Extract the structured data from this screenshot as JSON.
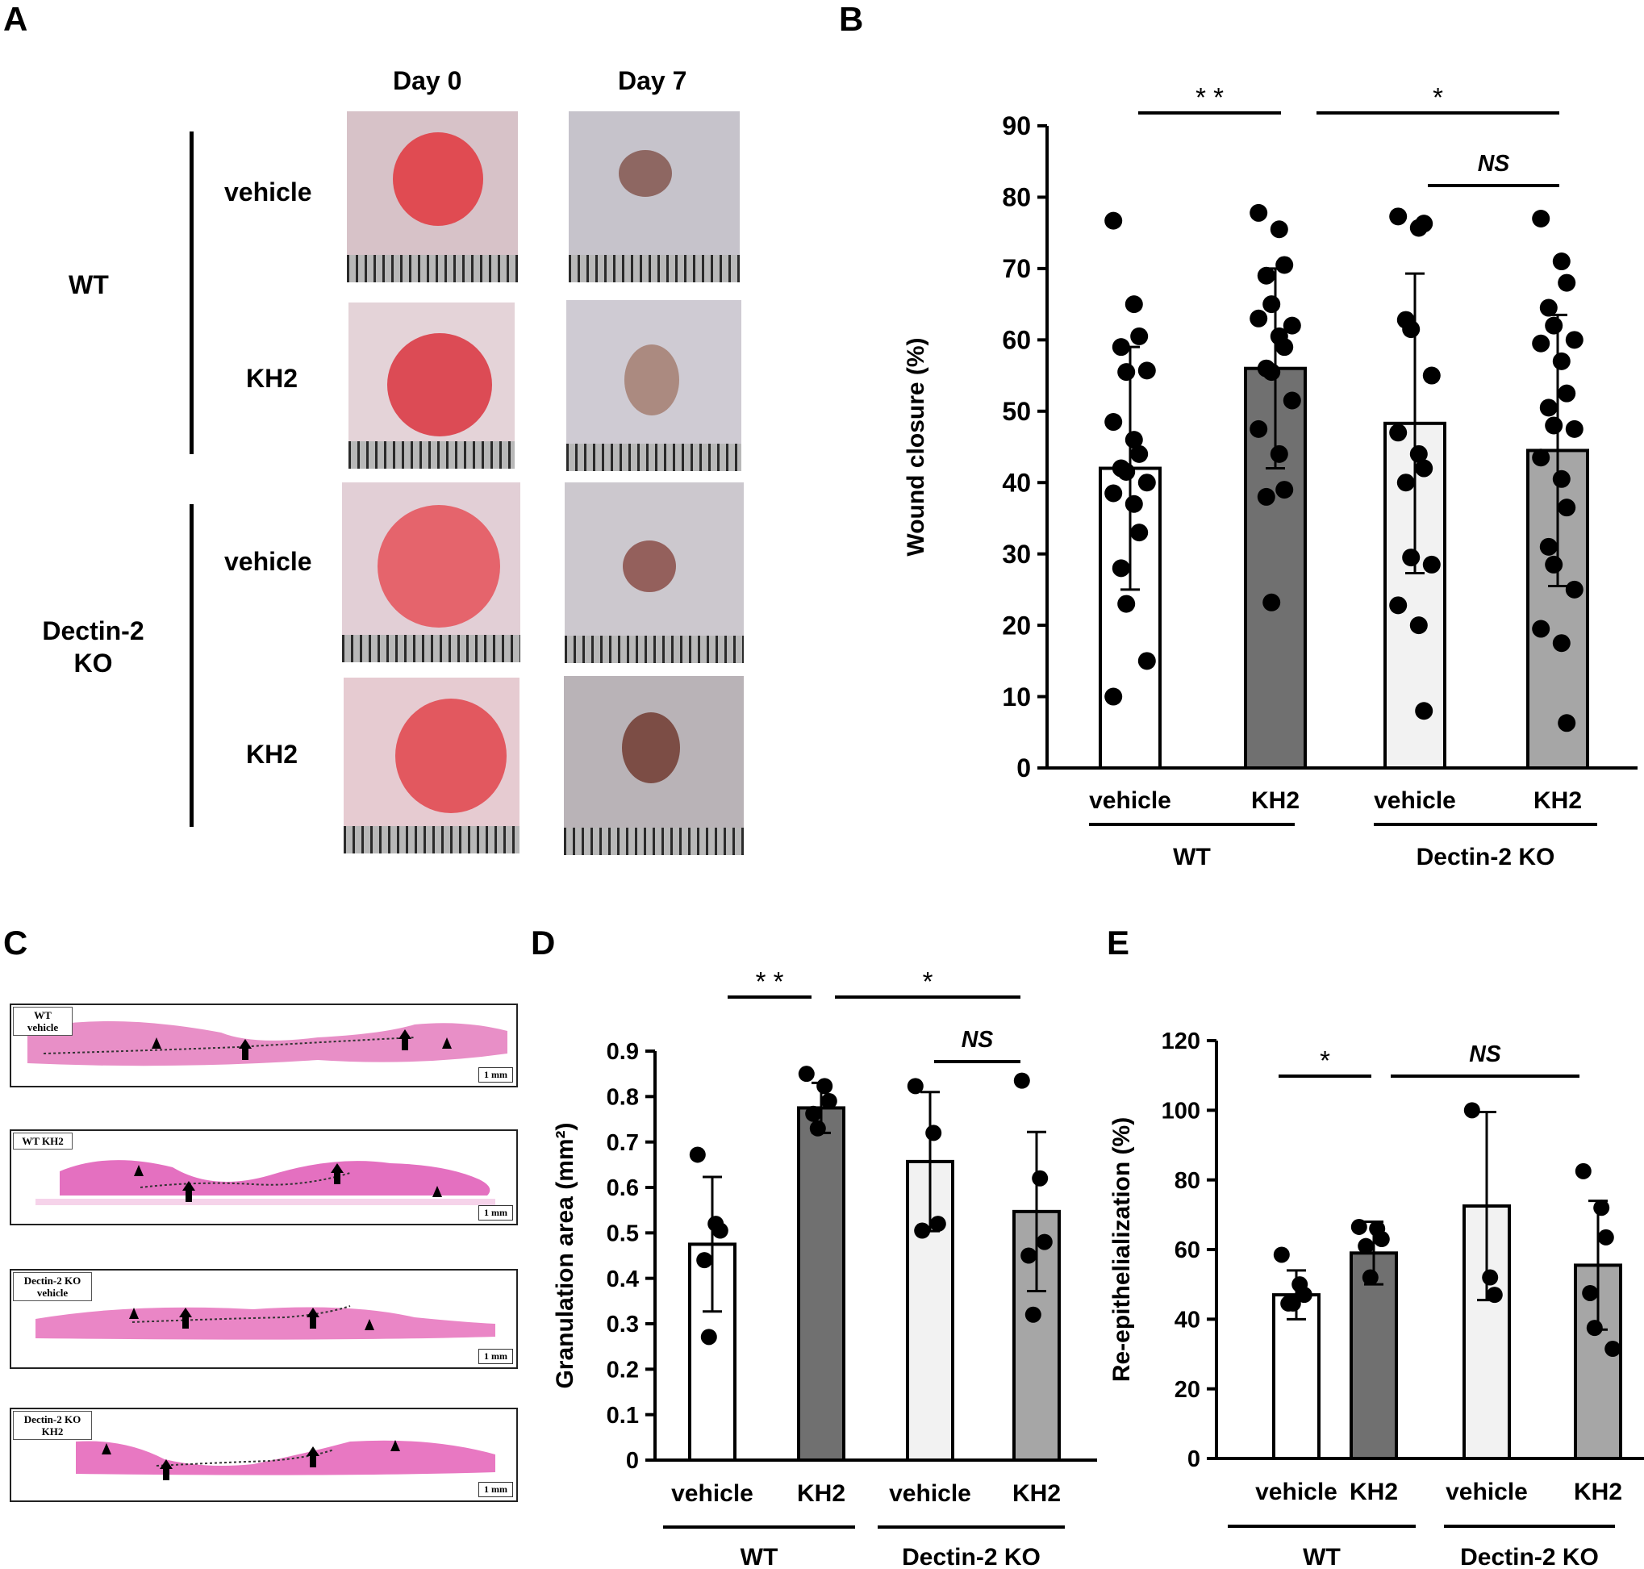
{
  "panels": {
    "A": {
      "letter": "A",
      "col_headers": [
        "Day 0",
        "Day 7"
      ],
      "groups": [
        "WT",
        "Dectin-2 KO"
      ],
      "rows": [
        "vehicle",
        "KH2",
        "vehicle",
        "KH2"
      ]
    },
    "C": {
      "letter": "C",
      "sections": [
        {
          "label": "WT vehicle",
          "scale": "1 mm"
        },
        {
          "label": "WT KH2",
          "scale": "1 mm"
        },
        {
          "label": "Dectin-2 KO vehicle",
          "scale": "1 mm"
        },
        {
          "label": "Dectin-2 KO KH2",
          "scale": "1 mm"
        }
      ]
    }
  },
  "chart_data": [
    {
      "panel": "B",
      "type": "bar",
      "ylabel": "Wound closure (%)",
      "ylim": [
        0,
        90
      ],
      "yticks": [
        0,
        10,
        20,
        30,
        40,
        50,
        60,
        70,
        80,
        90
      ],
      "ytick_labels": [
        "0",
        "10",
        "20",
        "30",
        "40",
        "50",
        "60",
        "70",
        "80",
        "90"
      ],
      "categories": [
        "vehicle",
        "KH2",
        "vehicle",
        "KH2"
      ],
      "groups": [
        "WT",
        "Dectin-2 KO"
      ],
      "fills": [
        "#ffffff",
        "#707070",
        "#f2f2f2",
        "#a6a6a6"
      ],
      "values": [
        42,
        56,
        48.3,
        44.5
      ],
      "error": [
        17,
        14,
        21,
        19
      ],
      "points": [
        [
          76.7,
          65,
          60.5,
          59,
          55.5,
          55.7,
          48.5,
          46,
          44,
          42,
          41.5,
          40,
          38.5,
          37,
          33,
          28,
          23,
          15,
          10
        ],
        [
          77.8,
          75.5,
          70.5,
          69,
          65,
          62,
          63,
          60.5,
          59,
          56,
          55.5,
          51.5,
          47.5,
          44,
          39,
          38,
          23.2
        ],
        [
          77.3,
          75.7,
          76.3,
          62.8,
          61.5,
          55,
          47,
          44,
          42,
          40,
          29.5,
          28.5,
          22.8,
          20,
          8
        ],
        [
          77,
          71,
          68,
          64.5,
          62,
          60,
          59.5,
          57,
          52.5,
          50.5,
          48,
          47.5,
          43.5,
          40.5,
          36.5,
          31,
          28.5,
          25,
          19.5,
          17.5,
          6.3
        ]
      ],
      "significance": [
        {
          "label": "* *",
          "from": 0,
          "to": 1
        },
        {
          "label": "*",
          "from": 1,
          "to": 3
        },
        {
          "label": "NS",
          "from": 2,
          "to": 3
        }
      ]
    },
    {
      "panel": "D",
      "type": "bar",
      "ylabel": "Granulation area (mm²)",
      "ylim": [
        0,
        0.9
      ],
      "yticks": [
        0,
        0.1,
        0.2,
        0.3,
        0.4,
        0.5,
        0.6,
        0.7,
        0.8,
        0.9
      ],
      "ytick_labels": [
        "0",
        "0.1",
        "0.2",
        "0.3",
        "0.4",
        "0.5",
        "0.6",
        "0.7",
        "0.8",
        "0.9"
      ],
      "categories": [
        "vehicle",
        "KH2",
        "vehicle",
        "KH2"
      ],
      "groups": [
        "WT",
        "Dectin-2 KO"
      ],
      "fills": [
        "#ffffff",
        "#707070",
        "#f2f2f2",
        "#a6a6a6"
      ],
      "values": [
        0.475,
        0.775,
        0.657,
        0.547
      ],
      "error": [
        0.148,
        0.055,
        0.153,
        0.175
      ],
      "points": [
        [
          0.672,
          0.52,
          0.505,
          0.44,
          0.271
        ],
        [
          0.85,
          0.823,
          0.79,
          0.762,
          0.73
        ],
        [
          0.823,
          0.72,
          0.52,
          0.505
        ],
        [
          0.835,
          0.62,
          0.48,
          0.45,
          0.32
        ]
      ],
      "significance": [
        {
          "label": "* *",
          "from": 0,
          "to": 1
        },
        {
          "label": "*",
          "from": 1,
          "to": 3
        },
        {
          "label": "NS",
          "from": 2,
          "to": 3
        }
      ]
    },
    {
      "panel": "E",
      "type": "bar",
      "ylabel": "Re-epithelialization (%)",
      "ylim": [
        0,
        120
      ],
      "yticks": [
        0,
        20,
        40,
        60,
        80,
        100,
        120
      ],
      "ytick_labels": [
        "0",
        "20",
        "40",
        "60",
        "80",
        "100",
        "120"
      ],
      "categories": [
        "vehicle",
        "KH2",
        "vehicle",
        "KH2"
      ],
      "groups": [
        "WT",
        "Dectin-2 KO"
      ],
      "fills": [
        "#ffffff",
        "#707070",
        "#f2f2f2",
        "#a6a6a6"
      ],
      "values": [
        47,
        59,
        72.5,
        55.5
      ],
      "error": [
        7,
        9,
        27,
        18.5
      ],
      "points": [
        [
          58.5,
          50,
          47,
          44.5,
          44.5
        ],
        [
          66.5,
          66,
          63,
          61,
          52
        ],
        [
          100,
          52,
          47
        ],
        [
          82.5,
          72,
          63.5,
          47.5,
          37.5,
          31.5
        ]
      ],
      "significance": [
        {
          "label": "*",
          "from": 0,
          "to": 1
        },
        {
          "label": "NS",
          "from": 1,
          "to": 3
        }
      ]
    }
  ]
}
